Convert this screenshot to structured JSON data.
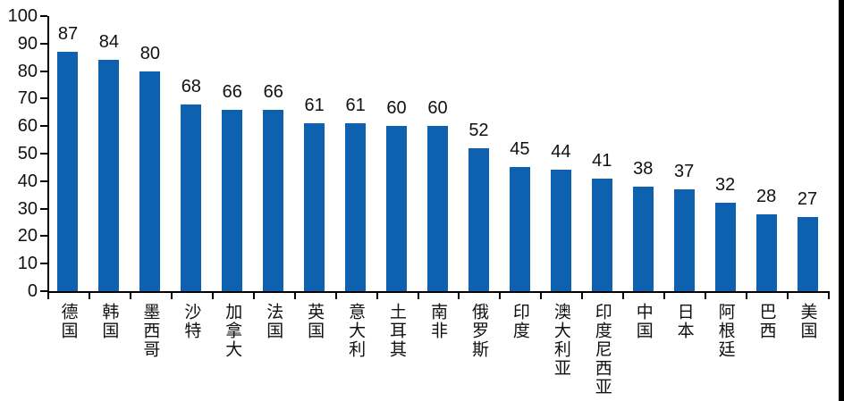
{
  "chart_data": {
    "type": "bar",
    "title": "",
    "xlabel": "",
    "ylabel": "",
    "categories": [
      "德国",
      "韩国",
      "墨西哥",
      "沙特",
      "加拿大",
      "法国",
      "英国",
      "意大利",
      "土耳其",
      "南非",
      "俄罗斯",
      "印度",
      "澳大利亚",
      "印度尼西亚",
      "中国",
      "日本",
      "阿根廷",
      "巴西",
      "美国"
    ],
    "values": [
      87,
      84,
      80,
      68,
      66,
      66,
      61,
      61,
      60,
      60,
      52,
      45,
      44,
      41,
      38,
      37,
      32,
      28,
      27
    ],
    "ylim": [
      0,
      100
    ],
    "yticks": [
      0,
      10,
      20,
      30,
      40,
      50,
      60,
      70,
      80,
      90,
      100
    ],
    "grid": false,
    "legend": null,
    "show_value_labels": true,
    "bar_color": "#0D61AF",
    "axis_color": "#000000",
    "text_color": "#111111",
    "right_edge_stripe_color": "#000000"
  }
}
